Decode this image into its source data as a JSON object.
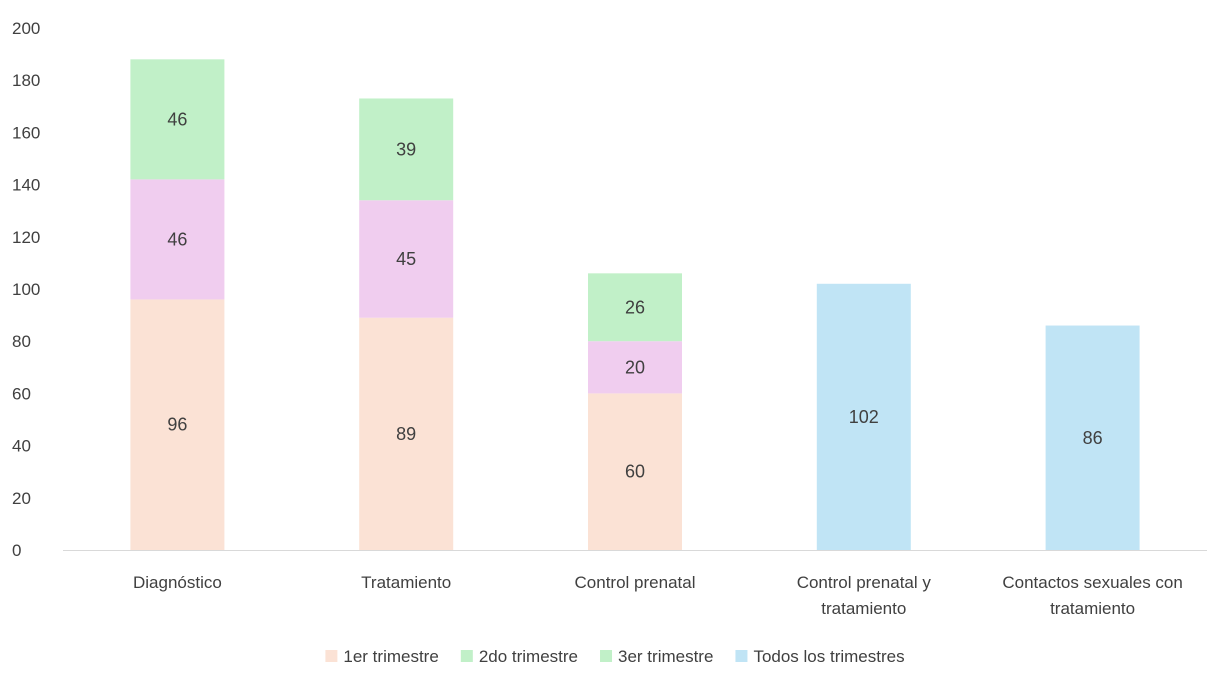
{
  "chart_data": {
    "type": "bar",
    "stacked": true,
    "title": "",
    "xlabel": "",
    "ylabel": "",
    "ylim": [
      0,
      200
    ],
    "yticks": [
      0,
      20,
      40,
      60,
      80,
      100,
      120,
      140,
      160,
      180,
      200
    ],
    "grid": false,
    "legend_position": "bottom",
    "categories": [
      [
        "Diagnóstico"
      ],
      [
        "Tratamiento"
      ],
      [
        "Control prenatal"
      ],
      [
        "Control prenatal y",
        "tratamiento"
      ],
      [
        "Contactos sexuales con",
        "tratamiento"
      ]
    ],
    "series": [
      {
        "name": "1er trimestre",
        "color": "#fbe2d5",
        "values": [
          96,
          89,
          60,
          null,
          null
        ]
      },
      {
        "name": "2do trimestre",
        "color": "#f0cdef",
        "values": [
          46,
          45,
          20,
          null,
          null
        ]
      },
      {
        "name": "3er trimestre",
        "color": "#c1f0c8",
        "values": [
          46,
          39,
          26,
          null,
          null
        ]
      },
      {
        "name": "Todos los trimestres",
        "color": "#c0e4f5",
        "values": [
          null,
          null,
          null,
          102,
          86
        ]
      }
    ],
    "legend_swatch_colors": [
      "#fbe2d5",
      "#c1f0c8",
      "#c1f0c8",
      "#c0e4f5"
    ]
  }
}
